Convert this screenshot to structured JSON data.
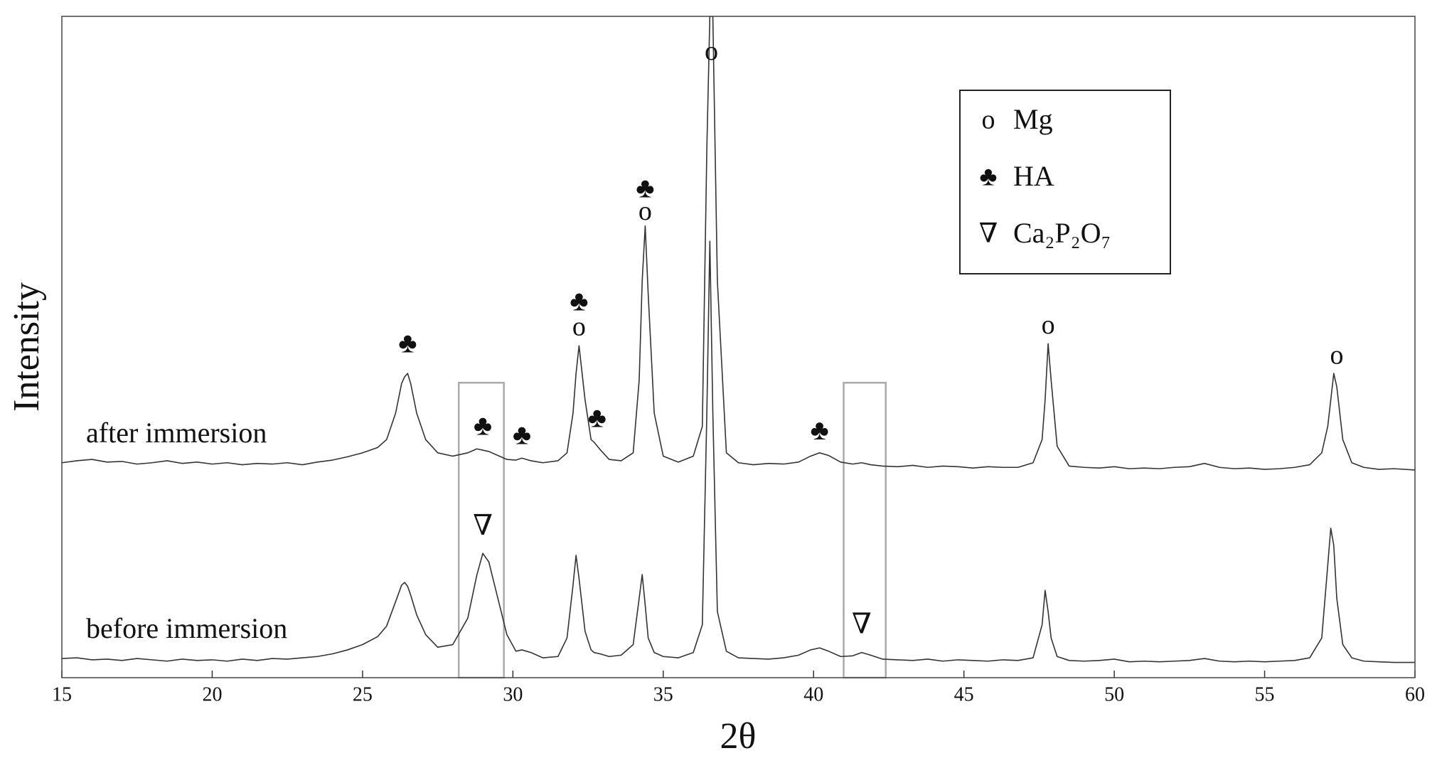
{
  "chart_data": {
    "type": "line",
    "xlabel": "2θ",
    "ylabel": "Intensity",
    "xlim": [
      15,
      60
    ],
    "ylim": [
      0,
      100
    ],
    "xticks": [
      15,
      20,
      25,
      30,
      35,
      40,
      45,
      50,
      55,
      60
    ],
    "x": [
      15,
      15.5,
      16,
      16.5,
      17,
      17.5,
      18,
      18.5,
      19,
      19.5,
      20,
      20.5,
      21,
      21.5,
      22,
      22.5,
      23,
      23.5,
      24,
      24.5,
      25,
      25.5,
      25.8,
      26.1,
      26.3,
      26.4,
      26.5,
      26.6,
      26.8,
      27.1,
      27.5,
      28,
      28.5,
      28.8,
      29,
      29.2,
      29.5,
      29.8,
      30.1,
      30.3,
      30.6,
      31,
      31.5,
      31.8,
      32,
      32.1,
      32.2,
      32.4,
      32.6,
      32.7,
      32.9,
      33.2,
      33.6,
      34,
      34.2,
      34.3,
      34.4,
      34.5,
      34.7,
      35,
      35.5,
      36,
      36.3,
      36.45,
      36.55,
      36.65,
      36.8,
      37.1,
      37.5,
      38,
      38.5,
      39,
      39.5,
      39.9,
      40.2,
      40.5,
      40.9,
      41.3,
      41.6,
      41.9,
      42.3,
      42.8,
      43.3,
      43.8,
      44.3,
      44.8,
      45.3,
      45.8,
      46.3,
      46.8,
      47.3,
      47.6,
      47.7,
      47.8,
      47.9,
      48.1,
      48.5,
      49,
      49.5,
      50,
      50.5,
      51,
      51.5,
      52,
      52.5,
      53,
      53.5,
      54,
      54.5,
      55,
      55.5,
      56,
      56.5,
      56.9,
      57.1,
      57.2,
      57.3,
      57.4,
      57.6,
      57.9,
      58.3,
      58.8,
      59.3,
      60
    ],
    "series": [
      {
        "name": "after immersion",
        "color": "#333333",
        "values": [
          32.5,
          32.8,
          33.0,
          32.6,
          32.7,
          32.3,
          32.5,
          32.8,
          32.4,
          32.6,
          32.3,
          32.5,
          32.2,
          32.4,
          32.3,
          32.5,
          32.2,
          32.6,
          32.9,
          33.4,
          34.0,
          34.8,
          36.0,
          40.0,
          44.5,
          45.5,
          46.0,
          44.5,
          40.0,
          36.0,
          34.0,
          33.5,
          34.0,
          34.6,
          34.4,
          34.2,
          33.6,
          33.0,
          32.9,
          33.2,
          32.8,
          32.5,
          32.8,
          34.0,
          40.0,
          46.0,
          50.2,
          42.0,
          36.0,
          35.6,
          34.5,
          33.0,
          32.8,
          34.0,
          45.0,
          60.0,
          68.3,
          58.0,
          40.0,
          33.5,
          32.6,
          33.5,
          38.0,
          80.0,
          100,
          100,
          60.0,
          34.0,
          32.5,
          32.2,
          32.4,
          32.3,
          32.6,
          33.5,
          34.0,
          33.6,
          32.6,
          32.3,
          32.5,
          32.2,
          32.0,
          31.9,
          32.1,
          31.8,
          32.0,
          31.9,
          31.7,
          31.9,
          31.8,
          31.8,
          32.5,
          36.0,
          42.0,
          50.5,
          45.0,
          35.0,
          32.0,
          31.8,
          31.7,
          31.9,
          31.6,
          31.7,
          31.6,
          31.8,
          31.9,
          32.4,
          31.8,
          31.6,
          31.7,
          31.5,
          31.6,
          31.8,
          32.2,
          34.0,
          38.0,
          42.0,
          46.0,
          44.0,
          36.0,
          32.5,
          31.8,
          31.5,
          31.6,
          31.4
        ]
      },
      {
        "name": "before immersion",
        "color": "#333333",
        "values": [
          2.9,
          3.0,
          2.7,
          2.8,
          2.6,
          2.9,
          2.7,
          2.5,
          2.8,
          2.6,
          2.7,
          2.5,
          2.8,
          2.6,
          2.9,
          2.8,
          3.0,
          3.2,
          3.6,
          4.2,
          5.0,
          6.2,
          7.8,
          11.5,
          14.0,
          14.4,
          13.8,
          12.5,
          9.5,
          6.5,
          4.6,
          5.0,
          9.0,
          15.5,
          18.8,
          17.5,
          12.0,
          6.5,
          4.0,
          4.2,
          3.8,
          3.0,
          3.2,
          6.0,
          14.0,
          18.5,
          15.0,
          7.0,
          4.2,
          3.8,
          3.6,
          3.2,
          3.4,
          5.0,
          12.0,
          15.6,
          11.0,
          6.0,
          3.8,
          3.2,
          3.0,
          3.8,
          8.0,
          40.0,
          66.0,
          40.0,
          10.0,
          4.0,
          3.0,
          2.9,
          2.8,
          3.0,
          3.4,
          4.2,
          4.5,
          4.0,
          3.2,
          3.3,
          3.8,
          3.4,
          2.8,
          2.7,
          2.6,
          2.8,
          2.5,
          2.7,
          2.6,
          2.5,
          2.7,
          2.6,
          3.0,
          8.0,
          13.2,
          10.0,
          6.0,
          3.2,
          2.6,
          2.5,
          2.6,
          2.8,
          2.4,
          2.5,
          2.4,
          2.5,
          2.6,
          2.9,
          2.5,
          2.4,
          2.5,
          2.4,
          2.5,
          2.6,
          3.0,
          6.0,
          17.0,
          22.6,
          20.0,
          12.0,
          5.0,
          3.0,
          2.5,
          2.4,
          2.3,
          2.3
        ]
      }
    ],
    "annotations": [
      {
        "text": "♣",
        "x": 26.5,
        "y": 50.2
      },
      {
        "text": "♣",
        "x": 29.0,
        "y": 37.7
      },
      {
        "text": "♣",
        "x": 30.3,
        "y": 36.3
      },
      {
        "text": "♣",
        "x": 32.2,
        "y": 56.5
      },
      {
        "text": "o",
        "x": 32.2,
        "y": 52.7
      },
      {
        "text": "♣",
        "x": 32.8,
        "y": 38.9
      },
      {
        "text": "♣",
        "x": 34.4,
        "y": 73.6
      },
      {
        "text": "o",
        "x": 34.4,
        "y": 70.2
      },
      {
        "text": "o",
        "x": 36.6,
        "y": 94.4
      },
      {
        "text": "♣",
        "x": 40.2,
        "y": 37.0
      },
      {
        "text": "o",
        "x": 47.8,
        "y": 53.0
      },
      {
        "text": "o",
        "x": 57.4,
        "y": 48.4
      },
      {
        "text": "∇",
        "x": 29.0,
        "y": 22.6
      },
      {
        "text": "∇",
        "x": 41.6,
        "y": 7.7
      }
    ],
    "highlight_regions": [
      {
        "xlim": [
          28.2,
          29.7
        ],
        "ylim": [
          0,
          44.6
        ]
      },
      {
        "xlim": [
          41.0,
          42.4
        ],
        "ylim": [
          0,
          44.6
        ]
      }
    ],
    "legend": [
      {
        "symbol": "o",
        "label": "Mg"
      },
      {
        "symbol": "♣",
        "label": "HA"
      },
      {
        "symbol": "∇",
        "label": "Ca₂P₂O₇"
      }
    ]
  }
}
